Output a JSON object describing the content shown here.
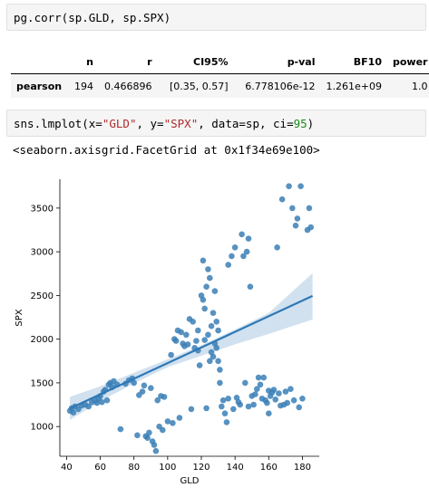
{
  "cells": {
    "corr": {
      "code": "pg.corr(sp.GLD, sp.SPX)"
    },
    "lmplot": {
      "code_parts": {
        "p1": "sns.lmplot(x=",
        "s1": "\"GLD\"",
        "p2": ", y=",
        "s2": "\"SPX\"",
        "p3": ", data=sp, ci=",
        "n1": "95",
        "p4": ")"
      },
      "stdout": "<seaborn.axisgrid.FacetGrid at 0x1f34e69e100>"
    }
  },
  "corr_table": {
    "columns": [
      "",
      "n",
      "r",
      "CI95%",
      "p-val",
      "BF10",
      "power"
    ],
    "rows": [
      [
        "pearson",
        "194",
        "0.466896",
        "[0.35, 0.57]",
        "6.778106e-12",
        "1.261e+09",
        "1.0"
      ]
    ]
  },
  "chart_data": {
    "type": "scatter",
    "xlabel": "GLD",
    "ylabel": "SPX",
    "xticks": [
      40,
      60,
      80,
      100,
      120,
      140,
      160,
      180
    ],
    "yticks": [
      1000,
      1500,
      2000,
      2500,
      3000,
      3500
    ],
    "xlim": [
      36,
      190
    ],
    "ylim": [
      660,
      3830
    ],
    "colors": {
      "points": "#3a7fb6",
      "line": "#2f78b5",
      "band": "#c9dcec"
    },
    "regression": {
      "x0": 42,
      "y0": 1208,
      "x1": 186,
      "y1": 2495
    },
    "ci_band": {
      "x": [
        42,
        60,
        80,
        100,
        120,
        140,
        160,
        186
      ],
      "lower": [
        1075,
        1290,
        1495,
        1680,
        1810,
        1940,
        2060,
        2225
      ],
      "upper": [
        1340,
        1460,
        1615,
        1770,
        1930,
        2110,
        2300,
        2755
      ]
    },
    "points": [
      [
        42,
        1180
      ],
      [
        43,
        1210
      ],
      [
        44,
        1160
      ],
      [
        45,
        1230
      ],
      [
        47,
        1200
      ],
      [
        49,
        1240
      ],
      [
        51,
        1250
      ],
      [
        53,
        1230
      ],
      [
        55,
        1280
      ],
      [
        57,
        1300
      ],
      [
        58,
        1270
      ],
      [
        59,
        1320
      ],
      [
        60,
        1350
      ],
      [
        61,
        1280
      ],
      [
        62,
        1400
      ],
      [
        63,
        1420
      ],
      [
        64,
        1300
      ],
      [
        65,
        1480
      ],
      [
        66,
        1500
      ],
      [
        67,
        1450
      ],
      [
        68,
        1520
      ],
      [
        70,
        1480
      ],
      [
        72,
        970
      ],
      [
        75,
        1490
      ],
      [
        77,
        1530
      ],
      [
        79,
        1550
      ],
      [
        80,
        1500
      ],
      [
        82,
        900
      ],
      [
        83,
        1360
      ],
      [
        85,
        1400
      ],
      [
        86,
        1470
      ],
      [
        87,
        890
      ],
      [
        88,
        870
      ],
      [
        89,
        930
      ],
      [
        90,
        1440
      ],
      [
        91,
        830
      ],
      [
        92,
        790
      ],
      [
        93,
        720
      ],
      [
        94,
        1300
      ],
      [
        95,
        1000
      ],
      [
        96,
        1350
      ],
      [
        97,
        960
      ],
      [
        98,
        1340
      ],
      [
        100,
        1060
      ],
      [
        102,
        1820
      ],
      [
        103,
        1040
      ],
      [
        104,
        2000
      ],
      [
        105,
        1980
      ],
      [
        106,
        2100
      ],
      [
        107,
        1100
      ],
      [
        108,
        2080
      ],
      [
        109,
        1950
      ],
      [
        110,
        1920
      ],
      [
        111,
        2050
      ],
      [
        112,
        1940
      ],
      [
        113,
        2230
      ],
      [
        114,
        1200
      ],
      [
        115,
        2200
      ],
      [
        116,
        1900
      ],
      [
        117,
        1980
      ],
      [
        118,
        1870
      ],
      [
        118,
        2100
      ],
      [
        119,
        1700
      ],
      [
        120,
        2500
      ],
      [
        121,
        2450
      ],
      [
        121,
        2900
      ],
      [
        122,
        2350
      ],
      [
        122,
        1990
      ],
      [
        123,
        2600
      ],
      [
        123,
        1210
      ],
      [
        124,
        2800
      ],
      [
        124,
        2050
      ],
      [
        125,
        2700
      ],
      [
        125,
        1750
      ],
      [
        126,
        2150
      ],
      [
        126,
        1850
      ],
      [
        127,
        2300
      ],
      [
        127,
        1800
      ],
      [
        128,
        2550
      ],
      [
        128,
        1950
      ],
      [
        129,
        2200
      ],
      [
        129,
        1900
      ],
      [
        130,
        1750
      ],
      [
        130,
        2100
      ],
      [
        131,
        1650
      ],
      [
        131,
        1500
      ],
      [
        132,
        1230
      ],
      [
        133,
        1300
      ],
      [
        134,
        1150
      ],
      [
        135,
        1050
      ],
      [
        136,
        2850
      ],
      [
        138,
        2950
      ],
      [
        139,
        1200
      ],
      [
        140,
        3050
      ],
      [
        141,
        1330
      ],
      [
        142,
        1280
      ],
      [
        143,
        1250
      ],
      [
        144,
        3200
      ],
      [
        145,
        2950
      ],
      [
        146,
        1500
      ],
      [
        147,
        3000
      ],
      [
        148,
        3150
      ],
      [
        149,
        2600
      ],
      [
        150,
        1350
      ],
      [
        151,
        1250
      ],
      [
        152,
        1370
      ],
      [
        153,
        1430
      ],
      [
        154,
        1560
      ],
      [
        155,
        1480
      ],
      [
        156,
        1320
      ],
      [
        157,
        1560
      ],
      [
        158,
        1300
      ],
      [
        159,
        1270
      ],
      [
        160,
        1150
      ],
      [
        161,
        1350
      ],
      [
        162,
        1390
      ],
      [
        163,
        1420
      ],
      [
        164,
        1310
      ],
      [
        165,
        3050
      ],
      [
        166,
        1380
      ],
      [
        167,
        1240
      ],
      [
        168,
        3600
      ],
      [
        169,
        1250
      ],
      [
        170,
        1400
      ],
      [
        171,
        1270
      ],
      [
        172,
        3750
      ],
      [
        173,
        1430
      ],
      [
        174,
        3500
      ],
      [
        175,
        1300
      ],
      [
        176,
        3300
      ],
      [
        177,
        3380
      ],
      [
        178,
        1220
      ],
      [
        179,
        3750
      ],
      [
        180,
        1320
      ],
      [
        183,
        3250
      ],
      [
        184,
        3500
      ],
      [
        185,
        3280
      ],
      [
        148,
        1230
      ],
      [
        160,
        1410
      ],
      [
        136,
        1320
      ]
    ]
  }
}
